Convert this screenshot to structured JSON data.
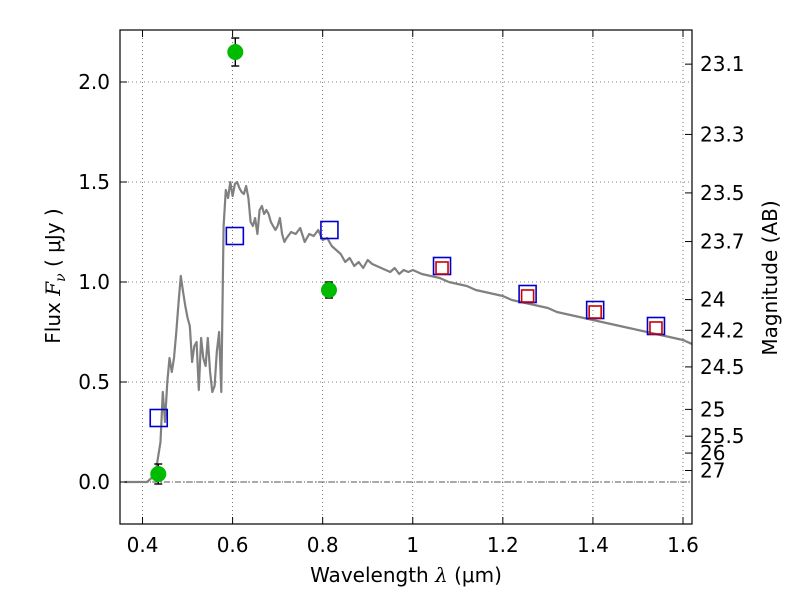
{
  "chart_data": {
    "type": "scatter",
    "xlabel": {
      "prefix": "Wavelength ",
      "sym": "λ",
      "unit": " (μm)"
    },
    "ylabel": {
      "prefix": "Flux ",
      "sym": "F",
      "sub": "ν",
      "unit": " ( μJy )"
    },
    "y2label": "Magnitude (AB)",
    "xlim": [
      0.35,
      1.62
    ],
    "ylim": [
      -0.21,
      2.26
    ],
    "x_ticks": [
      0.4,
      0.6,
      0.8,
      1.0,
      1.2,
      1.4,
      1.6
    ],
    "x_tick_labels": [
      "0.4",
      "0.6",
      "0.8",
      "1",
      "1.2",
      "1.4",
      "1.6"
    ],
    "y_ticks": [
      0.0,
      0.5,
      1.0,
      1.5,
      2.0
    ],
    "y_tick_labels": [
      "0.0",
      "0.5",
      "1.0",
      "1.5",
      "2.0"
    ],
    "y2_tick_labels": [
      "23.1",
      "23.3",
      "23.5",
      "23.7",
      "24",
      "24.2",
      "24.5",
      "25",
      "25.5",
      "26",
      "27"
    ],
    "grid": true,
    "zero_line": true,
    "series": [
      {
        "kind": "model_spectrum",
        "color": "#808080",
        "x": [
          0.36,
          0.41,
          0.42,
          0.43,
          0.44,
          0.445,
          0.45,
          0.455,
          0.46,
          0.465,
          0.47,
          0.475,
          0.48,
          0.485,
          0.49,
          0.495,
          0.5,
          0.505,
          0.51,
          0.515,
          0.52,
          0.525,
          0.53,
          0.535,
          0.54,
          0.545,
          0.55,
          0.555,
          0.56,
          0.565,
          0.57,
          0.575,
          0.58,
          0.585,
          0.59,
          0.595,
          0.6,
          0.605,
          0.61,
          0.615,
          0.62,
          0.625,
          0.63,
          0.635,
          0.64,
          0.645,
          0.65,
          0.655,
          0.66,
          0.665,
          0.67,
          0.675,
          0.68,
          0.685,
          0.69,
          0.695,
          0.7,
          0.705,
          0.71,
          0.715,
          0.72,
          0.73,
          0.74,
          0.75,
          0.76,
          0.77,
          0.78,
          0.79,
          0.8,
          0.81,
          0.82,
          0.83,
          0.84,
          0.85,
          0.86,
          0.87,
          0.88,
          0.89,
          0.9,
          0.91,
          0.92,
          0.93,
          0.94,
          0.95,
          0.96,
          0.97,
          0.98,
          0.99,
          1.0,
          1.02,
          1.04,
          1.06,
          1.08,
          1.1,
          1.12,
          1.14,
          1.16,
          1.18,
          1.2,
          1.22,
          1.24,
          1.26,
          1.28,
          1.3,
          1.32,
          1.34,
          1.36,
          1.38,
          1.4,
          1.42,
          1.44,
          1.46,
          1.48,
          1.5,
          1.52,
          1.54,
          1.56,
          1.58,
          1.6,
          1.62
        ],
        "values": [
          0.0,
          0.0,
          0.02,
          0.06,
          0.2,
          0.45,
          0.3,
          0.5,
          0.62,
          0.55,
          0.62,
          0.75,
          0.9,
          1.03,
          0.95,
          0.88,
          0.82,
          0.78,
          0.6,
          0.68,
          0.7,
          0.46,
          0.72,
          0.62,
          0.58,
          0.72,
          0.55,
          0.45,
          0.48,
          0.65,
          0.75,
          0.45,
          1.28,
          1.46,
          1.42,
          1.5,
          1.43,
          1.49,
          1.5,
          1.47,
          1.45,
          1.44,
          1.48,
          1.42,
          1.3,
          1.28,
          1.32,
          1.24,
          1.36,
          1.38,
          1.34,
          1.36,
          1.34,
          1.3,
          1.28,
          1.26,
          1.28,
          1.32,
          1.24,
          1.2,
          1.22,
          1.25,
          1.24,
          1.27,
          1.2,
          1.24,
          1.23,
          1.26,
          1.21,
          1.22,
          1.18,
          1.16,
          1.14,
          1.1,
          1.12,
          1.08,
          1.1,
          1.07,
          1.11,
          1.09,
          1.08,
          1.07,
          1.06,
          1.05,
          1.07,
          1.04,
          1.06,
          1.05,
          1.06,
          1.04,
          1.03,
          1.02,
          1.0,
          0.99,
          0.98,
          0.96,
          0.95,
          0.94,
          0.93,
          0.91,
          0.9,
          0.89,
          0.88,
          0.87,
          0.85,
          0.84,
          0.83,
          0.82,
          0.81,
          0.8,
          0.79,
          0.78,
          0.77,
          0.76,
          0.75,
          0.74,
          0.73,
          0.72,
          0.71,
          0.69
        ]
      },
      {
        "kind": "model_photometry",
        "marker": "open-square",
        "color": "#0000cc",
        "x": [
          0.436,
          0.605,
          0.815,
          1.065,
          1.255,
          1.405,
          1.54
        ],
        "values": [
          0.32,
          1.23,
          1.26,
          1.08,
          0.94,
          0.86,
          0.78
        ]
      },
      {
        "kind": "model_photometry_inner",
        "marker": "open-square",
        "color": "#cc0000",
        "x": [
          1.065,
          1.255,
          1.405,
          1.54
        ],
        "values": [
          1.07,
          0.93,
          0.85,
          0.77
        ]
      },
      {
        "kind": "observed",
        "marker": "filled-circle",
        "color": "#00bb00",
        "x": [
          0.435,
          0.606,
          0.814
        ],
        "values": [
          0.04,
          2.15,
          0.96
        ],
        "yerr": [
          0.05,
          0.07,
          0.04
        ]
      }
    ]
  }
}
